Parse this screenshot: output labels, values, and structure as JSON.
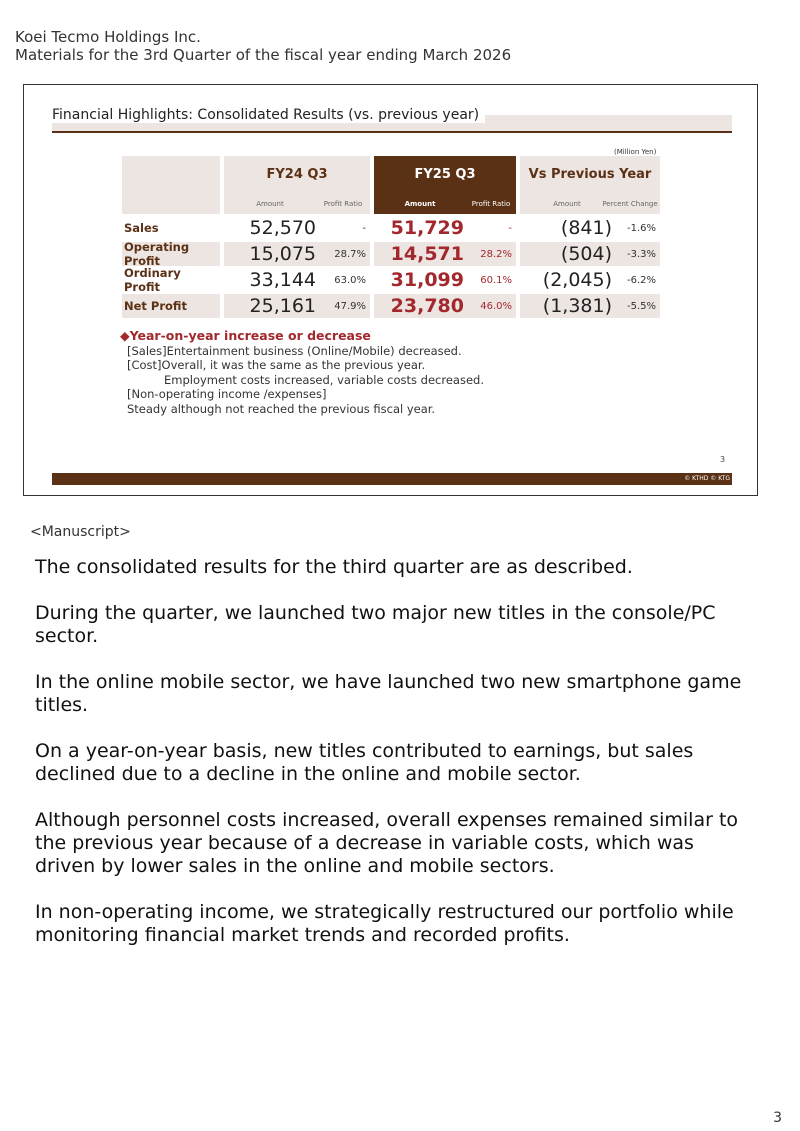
{
  "header": {
    "company": "Koei Tecmo Holdings Inc.",
    "subtitle": "Materials for the 3rd Quarter of the fiscal year ending March 2026"
  },
  "slide": {
    "title": "Financial Highlights: Consolidated Results (vs. previous year)",
    "unit": "(Million Yen)",
    "columns": {
      "fy24": "FY24 Q3",
      "fy25": "FY25 Q3",
      "vs": "Vs Previous Year",
      "amount": "Amount",
      "profit_ratio": "Profit Ratio",
      "percent_change": "Percent Change"
    },
    "rows": [
      {
        "label": "Sales",
        "fy24_amount": "52,570",
        "fy24_ratio": "-",
        "fy25_amount": "51,729",
        "fy25_ratio": "-",
        "vs_amount": "(841)",
        "vs_pct": "-1.6%"
      },
      {
        "label": "Operating Profit",
        "fy24_amount": "15,075",
        "fy24_ratio": "28.7%",
        "fy25_amount": "14,571",
        "fy25_ratio": "28.2%",
        "vs_amount": "(504)",
        "vs_pct": "-3.3%"
      },
      {
        "label": "Ordinary Profit",
        "fy24_amount": "33,144",
        "fy24_ratio": "63.0%",
        "fy25_amount": "31,099",
        "fy25_ratio": "60.1%",
        "vs_amount": "(2,045)",
        "vs_pct": "-6.2%"
      },
      {
        "label": "Net Profit",
        "fy24_amount": "25,161",
        "fy24_ratio": "47.9%",
        "fy25_amount": "23,780",
        "fy25_ratio": "46.0%",
        "vs_amount": "(1,381)",
        "vs_pct": "-5.5%"
      }
    ],
    "notes": {
      "heading": "◆Year-on-year increase or decrease",
      "lines": [
        "[Sales]Entertainment business (Online/Mobile) decreased.",
        "[Cost]Overall, it was the same as the previous year.",
        "Employment costs increased, variable costs decreased.",
        "[Non-operating income /expenses]",
        "Steady although not reached the previous fiscal year."
      ]
    },
    "page": "3",
    "copyright": "© KTHD © KTG"
  },
  "manuscript": {
    "label": "<Manuscript>",
    "paragraphs": [
      "The consolidated results for the third quarter are as described.",
      "During the quarter, we launched two major new titles in the console/PC sector.",
      "In the online mobile sector, we have launched two new smartphone game titles.",
      "On a year-on-year basis, new titles contributed to earnings, but sales declined due to a decline in the online and mobile sector.",
      "Although personnel costs increased, overall expenses remained similar to the previous year because of a decrease in variable costs, which was driven by lower sales in the online and mobile sectors.",
      "In non-operating income, we strategically restructured our portfolio while monitoring financial market trends and recorded profits."
    ]
  },
  "page_number": "3",
  "colors": {
    "brown": "#5b3116",
    "red": "#a3282e",
    "shade": "#ede5e1"
  }
}
